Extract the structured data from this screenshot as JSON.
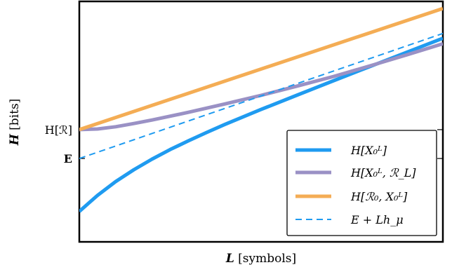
{
  "chart_data": {
    "type": "line",
    "xlabel": "L [symbols]",
    "ylabel": "H [bits]",
    "xlim": [
      0,
      10
    ],
    "ylim": [
      -1,
      6.5
    ],
    "grid": false,
    "legend_position": "lower-right",
    "y_ticks": [
      {
        "value": 2.5,
        "label": "H[ℛ]"
      },
      {
        "value": 1.6,
        "label": "E"
      }
    ],
    "series": [
      {
        "name": "H[X₀ᴸ]",
        "style": "solid",
        "color": "#1f9bf0",
        "x": [
          0,
          0.5,
          1,
          1.5,
          2,
          2.5,
          3,
          3.5,
          4,
          5,
          6,
          7,
          8,
          9,
          10
        ],
        "y": [
          -0.05,
          0.45,
          0.88,
          1.25,
          1.58,
          1.88,
          2.15,
          2.41,
          2.66,
          3.13,
          3.58,
          4.03,
          4.47,
          4.91,
          5.35
        ]
      },
      {
        "name": "H[X₀ᴸ, ℛ_L]",
        "style": "solid",
        "color": "#9a91c5",
        "x": [
          0,
          0.5,
          1,
          1.5,
          2,
          3,
          4,
          5,
          6,
          7,
          8,
          9,
          10
        ],
        "y": [
          2.5,
          2.52,
          2.59,
          2.69,
          2.8,
          3.04,
          3.3,
          3.57,
          3.86,
          4.16,
          4.49,
          4.83,
          5.18
        ]
      },
      {
        "name": "H[ℛ₀, X₀ᴸ]",
        "style": "solid",
        "color": "#f4ad55",
        "x": [
          0,
          10
        ],
        "y": [
          2.5,
          6.28
        ]
      },
      {
        "name": "E + Lh_μ",
        "style": "dashed",
        "color": "#1f9bf0",
        "x": [
          0,
          10
        ],
        "y": [
          1.6,
          5.5
        ]
      }
    ]
  }
}
